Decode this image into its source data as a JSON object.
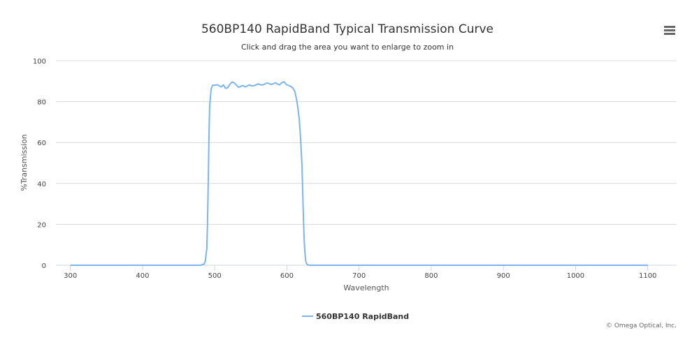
{
  "menu_icon": "hamburger-menu-icon",
  "credits": "© Omega Optical, Inc.",
  "colors": {
    "series": "#7cb5ec",
    "grid": "#d8d8d8",
    "axis": "#ccd6eb",
    "text": "#333333"
  },
  "chart_data": {
    "type": "line",
    "title": "560BP140 RapidBand Typical Transmission Curve",
    "subtitle": "Click and drag the area you want to enlarge to zoom in",
    "xlabel": "Wavelength",
    "ylabel": "%Transmission",
    "xlim": [
      280,
      1140
    ],
    "ylim": [
      0,
      100
    ],
    "xticks": [
      300,
      400,
      500,
      600,
      700,
      800,
      900,
      1000,
      1100
    ],
    "yticks": [
      0,
      20,
      40,
      60,
      80,
      100
    ],
    "grid": true,
    "legend_position": "bottom-center",
    "series": [
      {
        "name": "560BP140 RapidBand",
        "x": [
          300,
          400,
          480,
          485,
          487,
          489,
          490,
          491,
          492,
          493,
          495,
          497,
          500,
          503,
          506,
          509,
          512,
          515,
          518,
          521,
          524,
          527,
          530,
          533,
          536,
          539,
          542,
          545,
          548,
          551,
          554,
          557,
          560,
          563,
          566,
          569,
          572,
          575,
          578,
          581,
          584,
          587,
          590,
          593,
          596,
          599,
          602,
          605,
          608,
          611,
          614,
          617,
          619,
          621,
          622,
          623,
          624,
          625,
          626,
          627,
          628,
          629,
          630,
          631,
          632,
          633,
          634,
          636,
          640,
          700,
          800,
          900,
          1000,
          1100
        ],
        "y": [
          0,
          0,
          0,
          0.5,
          2,
          8,
          20,
          40,
          62,
          78,
          86,
          88,
          88,
          88.3,
          87.8,
          87.2,
          88.2,
          86.5,
          86.8,
          88.5,
          89.6,
          89.2,
          88.1,
          87,
          87.4,
          87.9,
          87.2,
          87.6,
          88.2,
          87.7,
          87.8,
          88.1,
          88.7,
          88.3,
          88.1,
          88.5,
          89.1,
          88.9,
          88.4,
          88.7,
          89.2,
          88.6,
          88.2,
          89.3,
          89.7,
          88.4,
          87.9,
          87.5,
          86.8,
          85,
          80,
          72,
          62,
          48,
          35,
          22,
          12,
          6,
          2.5,
          1,
          0.5,
          0.2,
          0.1,
          0,
          0,
          0,
          0,
          0,
          0,
          0,
          0,
          0,
          0,
          0
        ]
      }
    ]
  }
}
